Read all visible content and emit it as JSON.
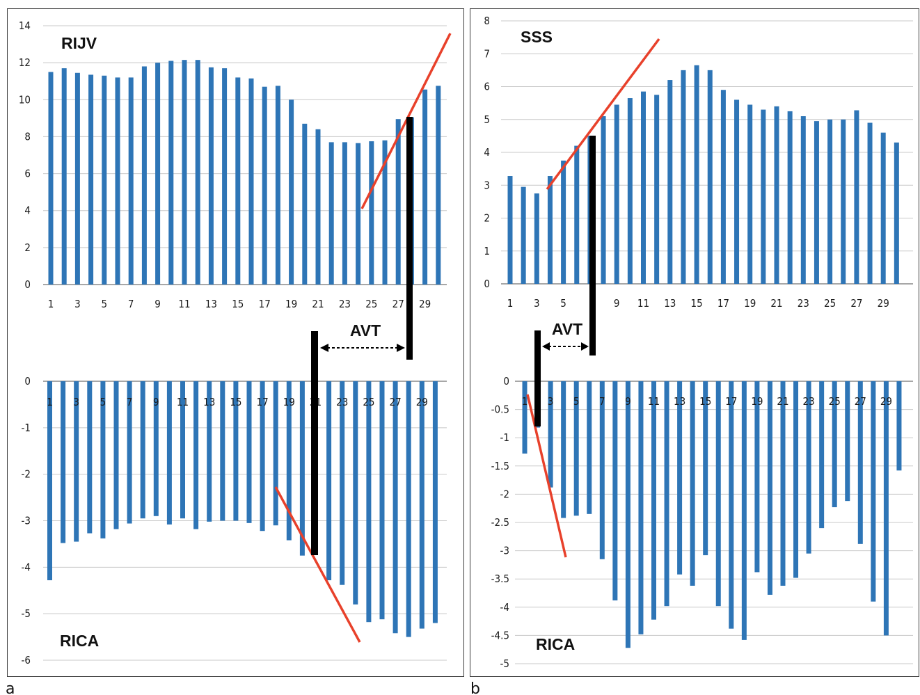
{
  "panel_labels": [
    "a",
    "b"
  ],
  "avt_label": "AVT",
  "bar_color": "#2e75b6",
  "fit_line_color": "#e8412b",
  "marker_color": "#000000",
  "chart_data": [
    {
      "type": "bar",
      "panel": "a",
      "title": "RIJV",
      "ylim": [
        0,
        14
      ],
      "yticks": [
        0,
        2,
        4,
        6,
        8,
        10,
        12,
        14
      ],
      "x": [
        1,
        2,
        3,
        4,
        5,
        6,
        7,
        8,
        9,
        10,
        11,
        12,
        13,
        14,
        15,
        16,
        17,
        18,
        19,
        20,
        21,
        22,
        23,
        24,
        25,
        26,
        27,
        28,
        29,
        30
      ],
      "xtick_labels": [
        "1",
        "3",
        "5",
        "7",
        "9",
        "11",
        "13",
        "15",
        "17",
        "19",
        "21",
        "23",
        "25",
        "27",
        "29"
      ],
      "values": [
        11.5,
        11.7,
        11.45,
        11.35,
        11.3,
        11.2,
        11.2,
        11.8,
        12.0,
        12.1,
        12.15,
        12.15,
        11.75,
        11.7,
        11.2,
        11.15,
        10.7,
        10.75,
        10.0,
        8.7,
        8.4,
        7.7,
        7.7,
        7.65,
        7.75,
        7.8,
        8.95,
        9.05,
        10.55,
        10.75
      ],
      "grid": true
    },
    {
      "type": "bar",
      "panel": "a",
      "title": "RICA",
      "ylim": [
        -6,
        0
      ],
      "yticks": [
        0,
        -1,
        -2,
        -3,
        -4,
        -5,
        -6
      ],
      "x": [
        1,
        2,
        3,
        4,
        5,
        6,
        7,
        8,
        9,
        10,
        11,
        12,
        13,
        14,
        15,
        16,
        17,
        18,
        19,
        20,
        21,
        22,
        23,
        24,
        25,
        26,
        27,
        28,
        29,
        30
      ],
      "xtick_labels": [
        "1",
        "3",
        "5",
        "7",
        "9",
        "11",
        "13",
        "15",
        "17",
        "19",
        "21",
        "23",
        "25",
        "27",
        "29"
      ],
      "values": [
        -4.28,
        -3.48,
        -3.45,
        -3.27,
        -3.38,
        -3.18,
        -3.06,
        -2.95,
        -2.9,
        -3.08,
        -2.95,
        -3.18,
        -3.02,
        -3.0,
        -3.0,
        -3.05,
        -3.22,
        -3.1,
        -3.42,
        -3.75,
        -3.72,
        -4.28,
        -4.38,
        -4.8,
        -5.18,
        -5.12,
        -5.42,
        -5.5,
        -5.32,
        -5.2
      ],
      "grid": true
    },
    {
      "type": "bar",
      "panel": "b",
      "title": "SSS",
      "ylim": [
        0,
        8
      ],
      "yticks": [
        0,
        1,
        2,
        3,
        4,
        5,
        6,
        7,
        8
      ],
      "x": [
        1,
        2,
        3,
        4,
        5,
        6,
        7,
        8,
        9,
        10,
        11,
        12,
        13,
        14,
        15,
        16,
        17,
        18,
        19,
        20,
        21,
        22,
        23,
        24,
        25,
        26,
        27,
        28,
        29,
        30
      ],
      "xtick_labels": [
        "1",
        "3",
        "5",
        "",
        "9",
        "11",
        "13",
        "15",
        "17",
        "19",
        "21",
        "23",
        "25",
        "27",
        "29"
      ],
      "values": [
        3.28,
        2.95,
        2.75,
        3.28,
        3.75,
        4.2,
        4.5,
        5.1,
        5.45,
        5.65,
        5.85,
        5.75,
        6.2,
        6.5,
        6.65,
        6.5,
        5.9,
        5.6,
        5.45,
        5.3,
        5.4,
        5.25,
        5.1,
        4.95,
        5.0,
        5.0,
        5.28,
        4.9,
        4.6,
        4.3
      ],
      "grid": true
    },
    {
      "type": "bar",
      "panel": "b",
      "title": "RICA",
      "ylim": [
        -5,
        0
      ],
      "yticks": [
        0,
        -0.5,
        -1,
        -1.5,
        -2,
        -2.5,
        -3,
        -3.5,
        -4,
        -4.5,
        -5
      ],
      "x": [
        1,
        2,
        3,
        4,
        5,
        6,
        7,
        8,
        9,
        10,
        11,
        12,
        13,
        14,
        15,
        16,
        17,
        18,
        19,
        20,
        21,
        22,
        23,
        24,
        25,
        26,
        27,
        28,
        29,
        30
      ],
      "xtick_labels": [
        "1",
        "3",
        "5",
        "7",
        "9",
        "11",
        "13",
        "15",
        "17",
        "19",
        "21",
        "23",
        "25",
        "27",
        "29"
      ],
      "values": [
        -1.28,
        -0.82,
        -1.88,
        -2.42,
        -2.38,
        -2.35,
        -3.15,
        -3.88,
        -4.72,
        -4.48,
        -4.22,
        -3.98,
        -3.42,
        -3.62,
        -3.08,
        -3.98,
        -4.38,
        -4.58,
        -3.38,
        -3.78,
        -3.62,
        -3.48,
        -3.05,
        -2.6,
        -2.23,
        -2.12,
        -2.88,
        -3.9,
        -4.5,
        -1.58
      ],
      "grid": true
    }
  ]
}
